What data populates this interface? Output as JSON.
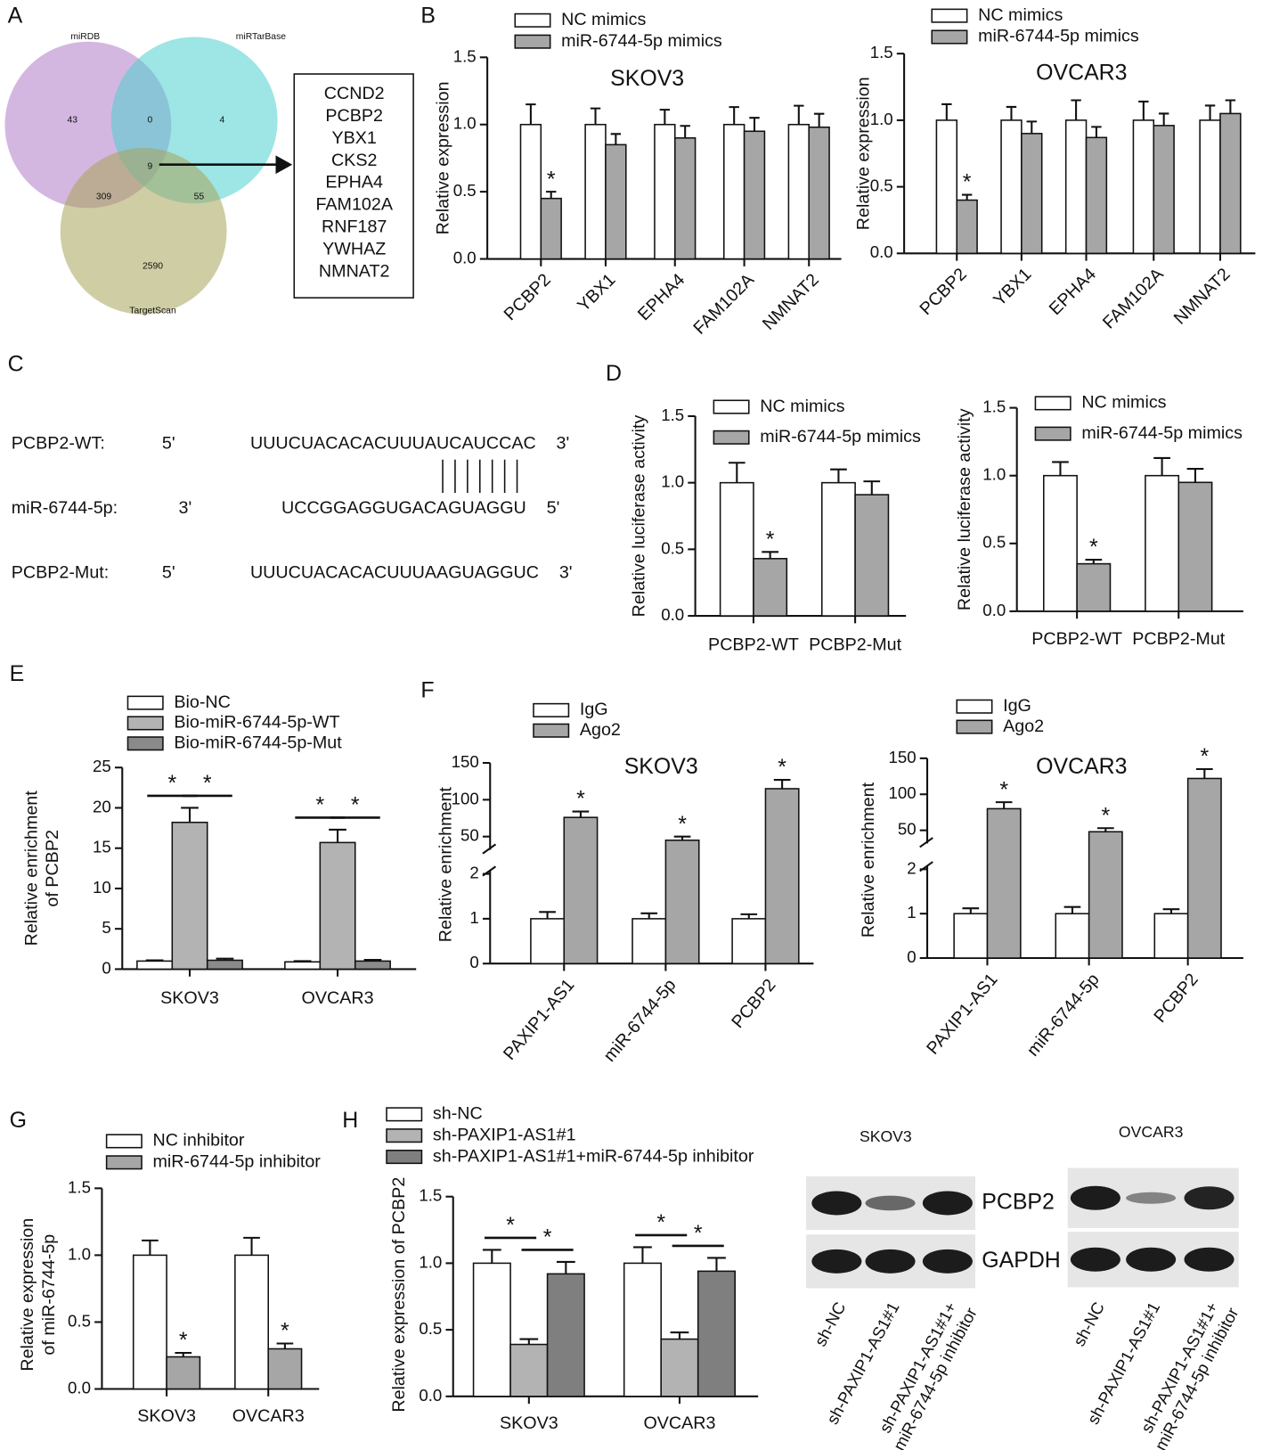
{
  "chart_data": [
    {
      "type": "venn",
      "panel": "A",
      "sets": [
        {
          "name": "miRDB",
          "color": "#b07cc6"
        },
        {
          "name": "miRTarBase",
          "color": "#4fd0d0"
        },
        {
          "name": "TargetScan",
          "color": "#a8a45a"
        }
      ],
      "counts": [
        43,
        0,
        4,
        309,
        9,
        55,
        2590
      ],
      "genes": [
        {
          "name": "CCND2",
          "color": "#111111"
        },
        {
          "name": "PCBP2",
          "color": "#ff0000"
        },
        {
          "name": "YBX1",
          "color": "#ff0000"
        },
        {
          "name": "CKS2",
          "color": "#111111"
        },
        {
          "name": "EPHA4",
          "color": "#ff0000"
        },
        {
          "name": "FAM102A",
          "color": "#ff0000"
        },
        {
          "name": "RNF187",
          "color": "#111111"
        },
        {
          "name": "YWHAZ",
          "color": "#111111"
        },
        {
          "name": "NMNAT2",
          "color": "#ff0000"
        }
      ]
    },
    {
      "type": "bar",
      "panel": "B",
      "title": "SKOV3",
      "ylabel": [
        "Relative expression"
      ],
      "categories": [
        "PCBP2",
        "YBX1",
        "EPHA4",
        "FAM102A",
        "NMNAT2"
      ],
      "series": [
        {
          "name": "NC mimics",
          "color": "#ffffff",
          "values": [
            1,
            1,
            1,
            1,
            1
          ],
          "errors": [
            0.15,
            0.12,
            0.11,
            0.13,
            0.14
          ]
        },
        {
          "name": "miR-6744-5p mimics",
          "color": "#a6a6a6",
          "values": [
            0.45,
            0.85,
            0.9,
            0.95,
            0.98
          ],
          "errors": [
            0.05,
            0.08,
            0.09,
            0.1,
            0.1
          ],
          "labels": [
            "*",
            null,
            null,
            null,
            null
          ]
        }
      ],
      "ylim": [
        0,
        1.5
      ],
      "yticks": [
        {
          "value": 0,
          "label": "0.0"
        },
        0.5,
        {
          "value": 1,
          "label": "1.0"
        },
        1.5
      ]
    },
    {
      "type": "bar",
      "title": "OVCAR3",
      "ylabel": [
        "Relative expression"
      ],
      "categories": [
        "PCBP2",
        "YBX1",
        "EPHA4",
        "FAM102A",
        "NMNAT2"
      ],
      "series": [
        {
          "name": "NC mimics",
          "color": "#ffffff",
          "values": [
            1,
            1,
            1,
            1,
            1
          ],
          "errors": [
            0.12,
            0.1,
            0.15,
            0.14,
            0.11
          ]
        },
        {
          "name": "miR-6744-5p mimics",
          "color": "#a6a6a6",
          "values": [
            0.4,
            0.9,
            0.87,
            0.96,
            1.05
          ],
          "errors": [
            0.04,
            0.09,
            0.08,
            0.09,
            0.1
          ],
          "labels": [
            "*",
            null,
            null,
            null,
            null
          ]
        }
      ],
      "ylim": [
        0,
        1.5
      ],
      "yticks": [
        {
          "value": 0,
          "label": "0.0"
        },
        0.5,
        {
          "value": 1,
          "label": "1.0"
        },
        1.5
      ]
    },
    {
      "type": "sequence",
      "panel": "C",
      "rows": [
        {
          "label": "PCBP2-WT:",
          "left": "5'",
          "seq": "UUUCUACACACUUUA",
          "site": "UCAUCCA",
          "tail": "C",
          "right": "3'"
        },
        {
          "label": "miR-6744-5p:",
          "left": "3'",
          "seq": "UCCGGAGGUGAC",
          "site": "AGUAGGU",
          "right": "5'"
        },
        {
          "label": "PCBP2-Mut:",
          "left": "5'",
          "seq": "UUUCUACACACUUUA",
          "site": "AGUAGGU",
          "tail": "C",
          "right": "3'"
        }
      ]
    },
    {
      "type": "bar",
      "panel": "D",
      "ylabel": [
        "Relative luciferase activity"
      ],
      "categories": [
        "PCBP2-WT",
        "PCBP2-Mut"
      ],
      "series": [
        {
          "name": "NC mimics",
          "color": "#ffffff",
          "values": [
            1,
            1
          ],
          "errors": [
            0.15,
            0.1
          ]
        },
        {
          "name": "miR-6744-5p mimics",
          "color": "#a6a6a6",
          "values": [
            0.43,
            0.91
          ],
          "errors": [
            0.05,
            0.1
          ],
          "labels": [
            "*",
            null
          ]
        }
      ],
      "ylim": [
        0,
        1.5
      ],
      "yticks": [
        {
          "value": 0,
          "label": "0.0"
        },
        0.5,
        {
          "value": 1,
          "label": "1.0"
        },
        1.5
      ]
    },
    {
      "type": "bar",
      "ylabel": [
        "Relative luciferase activity"
      ],
      "categories": [
        "PCBP2-WT",
        "PCBP2-Mut"
      ],
      "series": [
        {
          "name": "NC mimics",
          "color": "#ffffff",
          "values": [
            1,
            1
          ],
          "errors": [
            0.1,
            0.13
          ]
        },
        {
          "name": "miR-6744-5p mimics",
          "color": "#a6a6a6",
          "values": [
            0.35,
            0.95
          ],
          "errors": [
            0.03,
            0.1
          ],
          "labels": [
            "*",
            null
          ]
        }
      ],
      "ylim": [
        0,
        1.5
      ],
      "yticks": [
        {
          "value": 0,
          "label": "0.0"
        },
        0.5,
        {
          "value": 1,
          "label": "1.0"
        },
        1.5
      ]
    },
    {
      "type": "bar",
      "panel": "E",
      "ylabel": [
        "Relative enrichment",
        "of PCBP2"
      ],
      "categories": [
        "SKOV3",
        "OVCAR3"
      ],
      "series": [
        {
          "name": "Bio-NC",
          "color": "#ffffff",
          "values": [
            1,
            0.9
          ],
          "errors": [
            0.1,
            0.1
          ]
        },
        {
          "name": "Bio-miR-6744-5p-WT",
          "color": "#b3b3b3",
          "values": [
            18.2,
            15.7
          ],
          "errors": [
            1.8,
            1.6
          ]
        },
        {
          "name": "Bio-miR-6744-5p-Mut",
          "color": "#8a8a8a",
          "values": [
            1.1,
            1.0
          ],
          "errors": [
            0.2,
            0.15
          ]
        }
      ],
      "comparisons": [
        [
          "*",
          "*"
        ],
        [
          "*",
          "*"
        ]
      ],
      "ylim": [
        0,
        25
      ],
      "yticks": [
        0,
        5,
        10,
        15,
        20,
        25
      ]
    },
    {
      "type": "bar",
      "panel": "F",
      "title": "SKOV3",
      "ylabel": [
        "Relative enrichment"
      ],
      "categories": [
        "PAXIP1-AS1",
        "miR-6744-5p",
        "PCBP2"
      ],
      "series": [
        {
          "name": "IgG",
          "color": "#ffffff",
          "values": [
            1,
            1,
            1
          ],
          "errors": [
            0.15,
            0.12,
            0.1
          ]
        },
        {
          "name": "Ago2",
          "color": "#a6a6a6",
          "values": [
            76,
            45,
            115
          ],
          "errors": [
            8,
            5,
            12
          ],
          "labels": [
            "*",
            "*",
            "*"
          ]
        }
      ],
      "ylim": [
        0,
        2
      ],
      "yticks": [
        0,
        1,
        2
      ],
      "ylim_break": [
        37,
        150
      ],
      "yticks_break": [
        50,
        100,
        150
      ]
    },
    {
      "type": "bar",
      "title": "OVCAR3",
      "ylabel": [
        "Relative enrichment"
      ],
      "categories": [
        "PAXIP1-AS1",
        "miR-6744-5p",
        "PCBP2"
      ],
      "series": [
        {
          "name": "IgG",
          "color": "#ffffff",
          "values": [
            1,
            1,
            1
          ],
          "errors": [
            0.12,
            0.15,
            0.1
          ]
        },
        {
          "name": "Ago2",
          "color": "#a6a6a6",
          "values": [
            80,
            48,
            122
          ],
          "errors": [
            9,
            5,
            13
          ],
          "labels": [
            "*",
            "*",
            "*"
          ]
        }
      ],
      "ylim": [
        0,
        2
      ],
      "yticks": [
        0,
        1,
        2
      ],
      "ylim_break": [
        37,
        150
      ],
      "yticks_break": [
        50,
        100,
        150
      ]
    },
    {
      "type": "bar",
      "panel": "G",
      "ylabel": [
        "Relative expression",
        "of miR-6744-5p"
      ],
      "categories": [
        "SKOV3",
        "OVCAR3"
      ],
      "series": [
        {
          "name": "NC inhibitor",
          "color": "#ffffff",
          "values": [
            1,
            1
          ],
          "errors": [
            0.11,
            0.13
          ]
        },
        {
          "name": "miR-6744-5p inhibitor",
          "color": "#a6a6a6",
          "values": [
            0.24,
            0.3
          ],
          "errors": [
            0.03,
            0.04
          ],
          "labels": [
            "*",
            "*"
          ]
        }
      ],
      "ylim": [
        0,
        1.5
      ],
      "yticks": [
        {
          "value": 0,
          "label": "0.0"
        },
        0.5,
        {
          "value": 1,
          "label": "1.0"
        },
        1.5
      ]
    },
    {
      "type": "bar",
      "panel": "H",
      "ylabel": [
        "Relative expression of PCBP2"
      ],
      "categories": [
        "SKOV3",
        "OVCAR3"
      ],
      "series": [
        {
          "name": "sh-NC",
          "color": "#ffffff",
          "values": [
            1,
            1
          ],
          "errors": [
            0.1,
            0.12
          ]
        },
        {
          "name": "sh-PAXIP1-AS1#1",
          "color": "#b3b3b3",
          "values": [
            0.39,
            0.43
          ],
          "errors": [
            0.04,
            0.05
          ]
        },
        {
          "name": "sh-PAXIP1-AS1#1+miR-6744-5p inhibitor",
          "color": "#7f7f7f",
          "values": [
            0.92,
            0.94
          ],
          "errors": [
            0.09,
            0.1
          ]
        }
      ],
      "comparisons": [
        [
          "*",
          "*"
        ],
        [
          "*",
          "*"
        ]
      ],
      "ylim": [
        0,
        1.5
      ],
      "yticks": [
        {
          "value": 0,
          "label": "0.0"
        },
        0.5,
        {
          "value": 1,
          "label": "1.0"
        },
        1.5
      ]
    },
    {
      "type": "blot",
      "title": "SKOV3",
      "bands": [
        {
          "name": "PCBP2",
          "intensities": [
            1,
            0.45,
            1
          ]
        },
        {
          "name": "GAPDH",
          "intensities": [
            1,
            1,
            1
          ]
        }
      ],
      "lanes": [
        [
          "sh-NC"
        ],
        [
          "sh-PAXIP1-AS1#1"
        ],
        [
          "sh-PAXIP1-AS1#1+",
          "miR-6744-5p inhibitor"
        ]
      ]
    },
    {
      "type": "blot",
      "title": "OVCAR3",
      "bands": [
        {
          "intensities": [
            1,
            0.25,
            0.95
          ]
        },
        {
          "intensities": [
            1,
            1,
            1
          ]
        }
      ],
      "lanes": [
        [
          "sh-NC"
        ],
        [
          "sh-PAXIP1-AS1#1"
        ],
        [
          "sh-PAXIP1-AS1#1+",
          "miR-6744-5p inhibitor"
        ]
      ]
    }
  ]
}
